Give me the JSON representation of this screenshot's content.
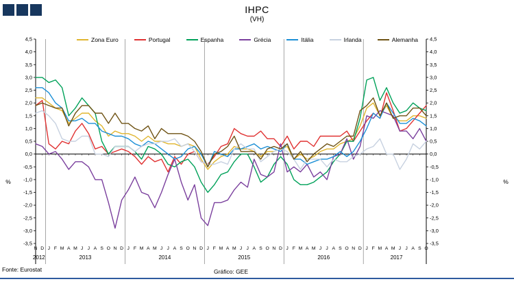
{
  "title": "IHPC",
  "subtitle": "(VH)",
  "footer": {
    "source": "Fonte: Eurostat",
    "credit": "Gráfico: GEE"
  },
  "logo_color": "#17375E",
  "accent_rule_color": "#2E5A9E",
  "chart_data": {
    "type": "line",
    "title": "IHPC",
    "subtitle": "(VH)",
    "ylabel": "%",
    "ylabel_right": "%",
    "ylim": [
      -3.5,
      4.5
    ],
    "y_tick_step": 0.5,
    "grid": "off",
    "legend_position": "top",
    "y_tick_labels": [
      "4,5",
      "4,0",
      "3,5",
      "3,0",
      "2,5",
      "2,0",
      "1,5",
      "1,0",
      "0,5",
      "0,0",
      "-0,5",
      "-1,0",
      "-1,5",
      "-2,0",
      "-2,5",
      "-3,0",
      "-3,5"
    ],
    "x_month_letters": [
      "N",
      "D",
      "J",
      "F",
      "M",
      "A",
      "M",
      "J",
      "J",
      "A",
      "S",
      "O",
      "N",
      "D",
      "J",
      "F",
      "M",
      "A",
      "M",
      "J",
      "J",
      "A",
      "S",
      "O",
      "N",
      "D",
      "J",
      "F",
      "M",
      "A",
      "M",
      "J",
      "J",
      "A",
      "S",
      "O",
      "N",
      "D",
      "J",
      "F",
      "M",
      "A",
      "M",
      "J",
      "J",
      "A",
      "S",
      "O",
      "N",
      "D",
      "J",
      "F",
      "M",
      "A",
      "M",
      "J",
      "J",
      "A",
      "S",
      "O"
    ],
    "year_groups": [
      {
        "label": "2012",
        "count": 2
      },
      {
        "label": "2013",
        "count": 12
      },
      {
        "label": "2014",
        "count": 12
      },
      {
        "label": "2015",
        "count": 12
      },
      {
        "label": "2016",
        "count": 12
      },
      {
        "label": "2017",
        "count": 10
      }
    ],
    "series": [
      {
        "name": "Zona Euro",
        "color": "#E0B52E",
        "values": [
          2.2,
          2.2,
          2.0,
          1.8,
          1.7,
          1.2,
          1.4,
          1.6,
          1.6,
          1.3,
          1.1,
          0.7,
          0.9,
          0.8,
          0.8,
          0.7,
          0.5,
          0.7,
          0.5,
          0.5,
          0.4,
          0.4,
          0.3,
          0.4,
          0.3,
          -0.2,
          -0.6,
          -0.3,
          -0.1,
          0.0,
          0.3,
          0.2,
          0.2,
          0.1,
          -0.1,
          0.1,
          0.1,
          0.2,
          0.3,
          -0.2,
          0.0,
          -0.2,
          -0.1,
          0.1,
          0.2,
          0.2,
          0.4,
          0.5,
          0.6,
          1.1,
          1.8,
          2.0,
          1.5,
          1.9,
          1.4,
          1.3,
          1.3,
          1.5,
          1.5,
          1.4
        ]
      },
      {
        "name": "Portugal",
        "color": "#E03131",
        "values": [
          1.9,
          2.1,
          0.4,
          0.2,
          0.5,
          0.4,
          0.9,
          1.2,
          0.8,
          0.2,
          0.3,
          0.0,
          0.1,
          0.2,
          0.1,
          -0.1,
          -0.4,
          -0.1,
          -0.3,
          -0.2,
          -0.7,
          -0.1,
          -0.4,
          0.0,
          0.1,
          -0.3,
          -0.4,
          -0.1,
          0.3,
          0.4,
          1.0,
          0.8,
          0.7,
          0.7,
          0.9,
          0.6,
          0.6,
          0.3,
          0.7,
          0.2,
          0.5,
          0.5,
          0.3,
          0.7,
          0.7,
          0.7,
          0.7,
          0.9,
          0.5,
          0.9,
          1.3,
          1.6,
          1.4,
          2.4,
          1.7,
          0.9,
          1.0,
          1.3,
          1.6,
          1.9
        ]
      },
      {
        "name": "Espanha",
        "color": "#00A159",
        "values": [
          3.0,
          3.0,
          2.8,
          2.9,
          2.6,
          1.5,
          1.8,
          2.2,
          1.9,
          1.6,
          0.5,
          0.0,
          0.3,
          0.3,
          0.3,
          0.1,
          -0.2,
          0.3,
          0.2,
          0.0,
          -0.4,
          -0.5,
          -0.3,
          -0.2,
          -0.5,
          -1.1,
          -1.5,
          -1.2,
          -0.8,
          -0.7,
          -0.3,
          0.0,
          0.0,
          -0.5,
          -1.1,
          -0.9,
          -0.4,
          -0.1,
          -0.4,
          -1.0,
          -1.2,
          -1.2,
          -1.1,
          -0.9,
          -0.7,
          -0.3,
          0.0,
          0.5,
          0.5,
          1.4,
          2.9,
          3.0,
          2.1,
          2.6,
          2.0,
          1.6,
          1.7,
          2.0,
          1.8,
          1.7
        ]
      },
      {
        "name": "Grécia",
        "color": "#7A3F9D",
        "values": [
          0.4,
          0.3,
          0.0,
          0.1,
          -0.2,
          -0.6,
          -0.3,
          -0.3,
          -0.5,
          -1.0,
          -1.0,
          -1.9,
          -2.9,
          -1.8,
          -1.4,
          -0.9,
          -1.5,
          -1.6,
          -2.1,
          -1.5,
          -0.8,
          -0.2,
          -1.1,
          -1.8,
          -1.2,
          -2.5,
          -2.8,
          -1.9,
          -1.9,
          -1.8,
          -1.4,
          -1.1,
          -1.3,
          -0.2,
          -0.8,
          -0.9,
          -0.7,
          0.4,
          -0.7,
          -0.5,
          -0.7,
          -0.4,
          -0.9,
          -0.7,
          -1.0,
          -0.1,
          0.0,
          0.6,
          -0.2,
          0.3,
          1.5,
          1.4,
          1.7,
          1.6,
          1.5,
          0.9,
          0.9,
          0.6,
          1.0,
          0.5
        ]
      },
      {
        "name": "Itália",
        "color": "#1B8FD6",
        "values": [
          2.6,
          2.6,
          2.4,
          2.0,
          1.8,
          1.3,
          1.3,
          1.4,
          1.2,
          1.2,
          0.9,
          0.8,
          0.7,
          0.7,
          0.6,
          0.4,
          0.3,
          0.5,
          0.4,
          0.2,
          0.0,
          -0.2,
          -0.1,
          0.2,
          0.3,
          0.0,
          -0.5,
          0.1,
          0.0,
          -0.1,
          0.2,
          0.2,
          0.3,
          0.4,
          0.2,
          0.3,
          0.2,
          0.1,
          0.4,
          -0.2,
          -0.2,
          -0.4,
          -0.3,
          -0.2,
          -0.2,
          -0.1,
          0.1,
          -0.1,
          0.1,
          0.5,
          1.0,
          1.6,
          1.4,
          2.0,
          1.6,
          1.2,
          1.2,
          1.4,
          1.3,
          1.1
        ]
      },
      {
        "name": "Irlanda",
        "color": "#C7D1E0",
        "values": [
          1.6,
          1.7,
          1.5,
          1.2,
          0.6,
          0.5,
          0.5,
          0.7,
          0.7,
          0.0,
          0.0,
          -0.1,
          0.3,
          0.3,
          0.3,
          0.1,
          0.3,
          0.4,
          0.4,
          0.5,
          0.5,
          0.6,
          0.3,
          0.4,
          0.1,
          -0.3,
          -0.4,
          -0.4,
          -0.3,
          -0.4,
          0.2,
          0.4,
          0.2,
          0.2,
          -0.3,
          -0.1,
          0.1,
          0.2,
          0.1,
          -0.2,
          -0.6,
          -0.2,
          -0.2,
          -0.2,
          -0.5,
          -0.2,
          -0.3,
          -0.3,
          -0.1,
          0.0,
          0.2,
          0.3,
          0.6,
          0.0,
          0.0,
          -0.6,
          -0.2,
          0.4,
          0.2,
          0.5
        ]
      },
      {
        "name": "Alemanha",
        "color": "#6E5213",
        "values": [
          1.9,
          2.0,
          1.9,
          1.8,
          1.8,
          1.1,
          1.6,
          1.9,
          1.9,
          1.6,
          1.6,
          1.2,
          1.6,
          1.2,
          1.2,
          1.0,
          0.9,
          1.1,
          0.6,
          1.0,
          0.8,
          0.8,
          0.8,
          0.7,
          0.5,
          0.1,
          -0.5,
          0.0,
          0.1,
          0.3,
          0.7,
          0.1,
          0.1,
          0.1,
          -0.2,
          0.2,
          0.3,
          0.2,
          0.4,
          -0.2,
          0.1,
          -0.3,
          0.0,
          0.2,
          0.4,
          0.3,
          0.5,
          0.7,
          0.7,
          1.7,
          1.9,
          2.2,
          1.5,
          2.0,
          1.4,
          1.5,
          1.5,
          1.8,
          1.8,
          1.5
        ]
      }
    ]
  }
}
